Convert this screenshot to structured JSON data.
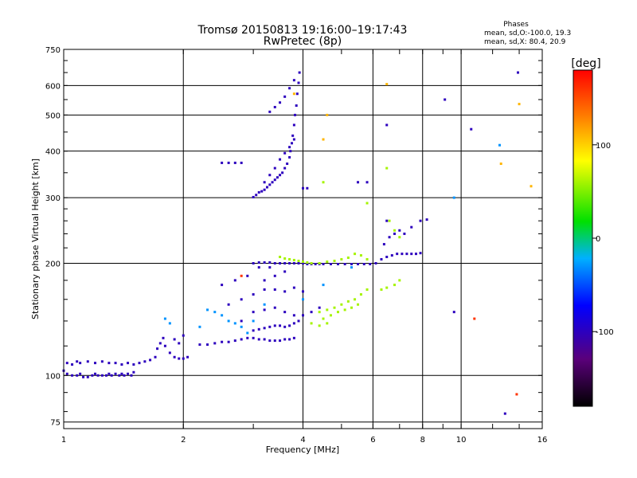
{
  "chart_data": {
    "type": "scatter",
    "title": "Tromsø 20150813 19:16:00–19:17:43",
    "subtitle": "RwPretec (8p)",
    "stats": {
      "heading": "Phases",
      "line1": "mean, sd,O:-100.0, 19.3",
      "line2": "mean, sd,X:  80.4, 20.9"
    },
    "xlabel": "Frequency [MHz]",
    "ylabel": "Stationary phase Virtual Height [km]",
    "xscale": "log",
    "yscale": "log",
    "xlim": [
      1,
      16
    ],
    "ylim": [
      72,
      750
    ],
    "xticks": [
      1,
      2,
      4,
      6,
      8,
      10,
      16
    ],
    "xticklabels": [
      "1",
      "2",
      "4",
      "6",
      "8",
      "10",
      "16"
    ],
    "yticks": [
      75,
      100,
      200,
      300,
      400,
      500,
      600,
      750
    ],
    "yticklabels": [
      "75",
      "100",
      "200",
      "300",
      "400",
      "500",
      "600",
      "750"
    ],
    "grid": true,
    "colorbar": {
      "label": "[deg]",
      "range": [
        -180,
        180
      ],
      "ticks": [
        100,
        0,
        -100
      ],
      "ticklabels": [
        "100",
        "0",
        "-100"
      ],
      "colors": [
        "#000000",
        "#5a007a",
        "#0000ff",
        "#00b0ff",
        "#00e000",
        "#ffff00",
        "#ff8000",
        "#ff0000"
      ]
    },
    "series": [
      {
        "phase": -100,
        "points": [
          [
            1.0,
            103
          ],
          [
            1.02,
            101
          ],
          [
            1.05,
            100
          ],
          [
            1.08,
            100
          ],
          [
            1.1,
            101
          ],
          [
            1.12,
            99
          ],
          [
            1.15,
            99
          ],
          [
            1.18,
            100
          ],
          [
            1.2,
            101
          ],
          [
            1.22,
            100
          ],
          [
            1.25,
            100
          ],
          [
            1.28,
            100
          ],
          [
            1.3,
            101
          ],
          [
            1.32,
            100
          ],
          [
            1.35,
            101
          ],
          [
            1.38,
            100
          ],
          [
            1.4,
            101
          ],
          [
            1.42,
            100
          ],
          [
            1.45,
            101
          ],
          [
            1.48,
            100
          ],
          [
            1.5,
            102
          ],
          [
            1.02,
            108
          ],
          [
            1.05,
            107
          ],
          [
            1.08,
            109
          ],
          [
            1.1,
            108
          ],
          [
            1.15,
            109
          ],
          [
            1.2,
            108
          ],
          [
            1.25,
            109
          ],
          [
            1.3,
            108
          ],
          [
            1.35,
            108
          ],
          [
            1.4,
            107
          ],
          [
            1.45,
            108
          ],
          [
            1.5,
            107
          ],
          [
            1.55,
            108
          ],
          [
            1.6,
            109
          ],
          [
            1.65,
            110
          ],
          [
            1.7,
            112
          ],
          [
            1.72,
            118
          ],
          [
            1.75,
            122
          ],
          [
            1.78,
            126
          ],
          [
            1.8,
            120
          ],
          [
            1.85,
            115
          ],
          [
            1.9,
            112
          ],
          [
            1.95,
            111
          ],
          [
            2.0,
            111
          ],
          [
            2.05,
            112
          ],
          [
            1.9,
            125
          ],
          [
            1.95,
            122
          ],
          [
            2.0,
            128
          ],
          [
            2.2,
            121
          ],
          [
            2.3,
            121
          ],
          [
            2.4,
            122
          ],
          [
            2.5,
            123
          ],
          [
            2.6,
            123
          ],
          [
            2.7,
            124
          ],
          [
            2.8,
            125
          ],
          [
            2.9,
            126
          ],
          [
            3.0,
            126
          ],
          [
            3.1,
            125
          ],
          [
            3.2,
            125
          ],
          [
            3.3,
            124
          ],
          [
            3.4,
            124
          ],
          [
            3.5,
            124
          ],
          [
            3.6,
            125
          ],
          [
            3.7,
            125
          ],
          [
            3.8,
            126
          ],
          [
            3.0,
            132
          ],
          [
            3.1,
            133
          ],
          [
            3.2,
            134
          ],
          [
            3.3,
            135
          ],
          [
            3.4,
            136
          ],
          [
            3.5,
            136
          ],
          [
            3.6,
            135
          ],
          [
            3.7,
            136
          ],
          [
            3.8,
            138
          ],
          [
            3.9,
            140
          ],
          [
            2.8,
            140
          ],
          [
            3.0,
            148
          ],
          [
            3.2,
            150
          ],
          [
            3.4,
            152
          ],
          [
            3.6,
            148
          ],
          [
            3.8,
            145
          ],
          [
            4.0,
            145
          ],
          [
            4.2,
            148
          ],
          [
            4.4,
            152
          ],
          [
            2.6,
            155
          ],
          [
            2.8,
            160
          ],
          [
            3.0,
            165
          ],
          [
            3.2,
            170
          ],
          [
            3.4,
            170
          ],
          [
            3.6,
            168
          ],
          [
            3.8,
            172
          ],
          [
            4.0,
            168
          ],
          [
            3.2,
            180
          ],
          [
            3.4,
            185
          ],
          [
            3.6,
            190
          ],
          [
            3.3,
            195
          ],
          [
            3.1,
            195
          ],
          [
            2.9,
            185
          ],
          [
            2.7,
            180
          ],
          [
            2.5,
            175
          ],
          [
            3.0,
            200
          ],
          [
            3.1,
            201
          ],
          [
            3.2,
            201
          ],
          [
            3.3,
            201
          ],
          [
            3.4,
            200
          ],
          [
            3.5,
            200
          ],
          [
            3.6,
            200
          ],
          [
            3.7,
            200
          ],
          [
            3.8,
            200
          ],
          [
            3.9,
            200
          ],
          [
            4.0,
            200
          ],
          [
            4.1,
            199
          ],
          [
            4.2,
            199
          ],
          [
            4.3,
            199
          ],
          [
            4.4,
            199
          ],
          [
            4.5,
            199
          ],
          [
            4.7,
            199
          ],
          [
            4.9,
            199
          ],
          [
            5.1,
            199
          ],
          [
            5.3,
            199
          ],
          [
            5.5,
            199
          ],
          [
            5.7,
            199
          ],
          [
            5.9,
            199
          ],
          [
            6.1,
            200
          ],
          [
            6.3,
            205
          ],
          [
            6.5,
            208
          ],
          [
            6.7,
            210
          ],
          [
            6.9,
            212
          ],
          [
            7.1,
            212
          ],
          [
            7.3,
            212
          ],
          [
            7.5,
            212
          ],
          [
            7.7,
            212
          ],
          [
            7.9,
            213
          ],
          [
            6.4,
            225
          ],
          [
            6.6,
            235
          ],
          [
            6.8,
            240
          ],
          [
            7.0,
            245
          ],
          [
            7.2,
            240
          ],
          [
            7.5,
            250
          ],
          [
            7.9,
            260
          ],
          [
            8.2,
            262
          ],
          [
            3.0,
            301
          ],
          [
            3.05,
            305
          ],
          [
            3.1,
            310
          ],
          [
            3.15,
            312
          ],
          [
            3.2,
            315
          ],
          [
            3.25,
            320
          ],
          [
            3.3,
            325
          ],
          [
            3.35,
            330
          ],
          [
            3.4,
            335
          ],
          [
            3.45,
            340
          ],
          [
            3.5,
            345
          ],
          [
            3.55,
            350
          ],
          [
            3.6,
            360
          ],
          [
            3.65,
            370
          ],
          [
            3.7,
            385
          ],
          [
            3.72,
            400
          ],
          [
            3.75,
            420
          ],
          [
            3.77,
            440
          ],
          [
            3.8,
            470
          ],
          [
            3.82,
            500
          ],
          [
            3.85,
            530
          ],
          [
            3.87,
            570
          ],
          [
            3.9,
            610
          ],
          [
            3.92,
            650
          ],
          [
            3.2,
            330
          ],
          [
            3.3,
            345
          ],
          [
            3.4,
            360
          ],
          [
            3.5,
            380
          ],
          [
            3.6,
            395
          ],
          [
            3.7,
            410
          ],
          [
            3.8,
            430
          ],
          [
            3.3,
            510
          ],
          [
            3.4,
            525
          ],
          [
            3.5,
            540
          ],
          [
            3.6,
            560
          ],
          [
            3.7,
            590
          ],
          [
            3.8,
            620
          ],
          [
            2.5,
            372
          ],
          [
            2.6,
            372
          ],
          [
            2.7,
            372
          ],
          [
            2.8,
            372
          ],
          [
            4.0,
            318
          ],
          [
            4.1,
            318
          ],
          [
            5.5,
            330
          ],
          [
            5.8,
            330
          ],
          [
            9.1,
            550
          ],
          [
            10.6,
            458
          ],
          [
            12.9,
            79
          ],
          [
            13.9,
            650
          ],
          [
            9.6,
            148
          ],
          [
            6.5,
            260
          ],
          [
            6.5,
            470
          ]
        ]
      },
      {
        "phase": 60,
        "points": [
          [
            3.5,
            208
          ],
          [
            3.6,
            206
          ],
          [
            3.7,
            205
          ],
          [
            3.8,
            204
          ],
          [
            3.9,
            203
          ],
          [
            4.0,
            202
          ],
          [
            4.1,
            201
          ],
          [
            4.2,
            200
          ],
          [
            4.4,
            200
          ],
          [
            4.6,
            202
          ],
          [
            4.8,
            203
          ],
          [
            5.0,
            205
          ],
          [
            5.2,
            207
          ],
          [
            5.4,
            212
          ],
          [
            5.6,
            210
          ],
          [
            5.8,
            205
          ],
          [
            4.4,
            148
          ],
          [
            4.6,
            150
          ],
          [
            4.8,
            152
          ],
          [
            5.0,
            155
          ],
          [
            5.2,
            158
          ],
          [
            5.4,
            160
          ],
          [
            5.6,
            165
          ],
          [
            5.8,
            170
          ],
          [
            4.5,
            142
          ],
          [
            4.7,
            145
          ],
          [
            4.9,
            148
          ],
          [
            5.1,
            150
          ],
          [
            5.3,
            152
          ],
          [
            5.5,
            155
          ],
          [
            4.2,
            138
          ],
          [
            4.4,
            136
          ],
          [
            4.6,
            138
          ],
          [
            6.3,
            170
          ],
          [
            6.5,
            172
          ],
          [
            6.8,
            175
          ],
          [
            7.0,
            180
          ],
          [
            6.6,
            260
          ],
          [
            6.8,
            245
          ],
          [
            7.0,
            235
          ],
          [
            5.8,
            290
          ],
          [
            6.5,
            360
          ],
          [
            4.5,
            330
          ]
        ]
      },
      {
        "phase": -30,
        "points": [
          [
            2.3,
            150
          ],
          [
            2.4,
            148
          ],
          [
            2.5,
            145
          ],
          [
            2.6,
            140
          ],
          [
            2.7,
            138
          ],
          [
            2.8,
            135
          ],
          [
            2.9,
            130
          ],
          [
            2.2,
            135
          ],
          [
            3.0,
            140
          ],
          [
            3.2,
            155
          ],
          [
            4.0,
            160
          ],
          [
            4.5,
            175
          ],
          [
            5.3,
            195
          ],
          [
            1.8,
            142
          ],
          [
            1.85,
            138
          ],
          [
            12.5,
            415
          ],
          [
            9.6,
            300
          ]
        ]
      },
      {
        "phase": 110,
        "points": [
          [
            3.8,
            570
          ],
          [
            4.6,
            500
          ],
          [
            4.5,
            430
          ],
          [
            6.5,
            605
          ],
          [
            12.6,
            370
          ],
          [
            14.0,
            535
          ],
          [
            15.0,
            322
          ]
        ]
      },
      {
        "phase": 160,
        "points": [
          [
            2.8,
            185
          ],
          [
            13.8,
            89
          ],
          [
            10.8,
            142
          ]
        ]
      }
    ]
  }
}
